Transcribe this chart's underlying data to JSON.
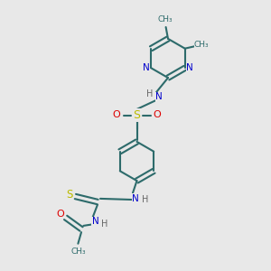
{
  "bg_color": "#e8e8e8",
  "bond_color": "#2d6b6b",
  "N_color": "#0000cc",
  "O_color": "#dd0000",
  "S_color": "#bbbb00",
  "H_color": "#666666",
  "figsize": [
    3.0,
    3.0
  ],
  "dpi": 100,
  "xlim": [
    0,
    10
  ],
  "ylim": [
    0,
    10
  ]
}
